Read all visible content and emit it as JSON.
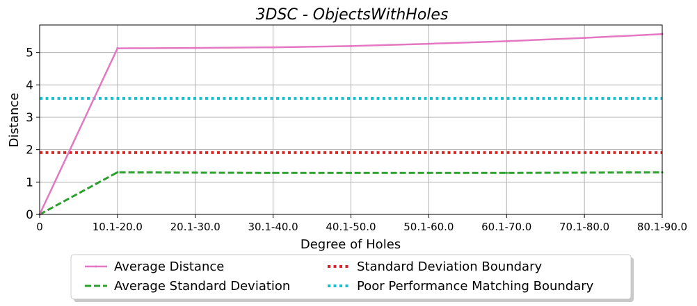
{
  "chart_data": {
    "type": "line",
    "title": "3DSC - ObjectsWithHoles",
    "xlabel": "Degree of Holes",
    "ylabel": "Distance",
    "categories": [
      "0",
      "10.1-20.0",
      "20.1-30.0",
      "30.1-40.0",
      "40.1-50.0",
      "50.1-60.0",
      "60.1-70.0",
      "70.1-80.0",
      "80.1-90.0"
    ],
    "yticks": [
      "0",
      "1",
      "2",
      "3",
      "4",
      "5"
    ],
    "ylim": [
      0,
      5.85
    ],
    "grid": true,
    "legend_position": "bottom-center",
    "series": [
      {
        "name": "Average Distance",
        "color": "#e377c2",
        "style": "solid",
        "values": [
          0,
          5.13,
          5.14,
          5.16,
          5.2,
          5.27,
          5.35,
          5.45,
          5.57
        ]
      },
      {
        "name": "Average Standard Deviation",
        "color": "#2ca02c",
        "style": "dashed",
        "values": [
          0,
          1.3,
          1.29,
          1.28,
          1.28,
          1.28,
          1.28,
          1.29,
          1.3
        ]
      },
      {
        "name": "Standard Deviation Boundary",
        "color": "#d62728",
        "style": "dotted",
        "values": [
          1.91,
          1.91,
          1.91,
          1.91,
          1.91,
          1.91,
          1.91,
          1.91,
          1.91
        ]
      },
      {
        "name": "Poor Performance Matching Boundary",
        "color": "#17becf",
        "style": "dotted",
        "values": [
          3.58,
          3.58,
          3.58,
          3.58,
          3.58,
          3.58,
          3.58,
          3.58,
          3.58
        ]
      }
    ]
  }
}
